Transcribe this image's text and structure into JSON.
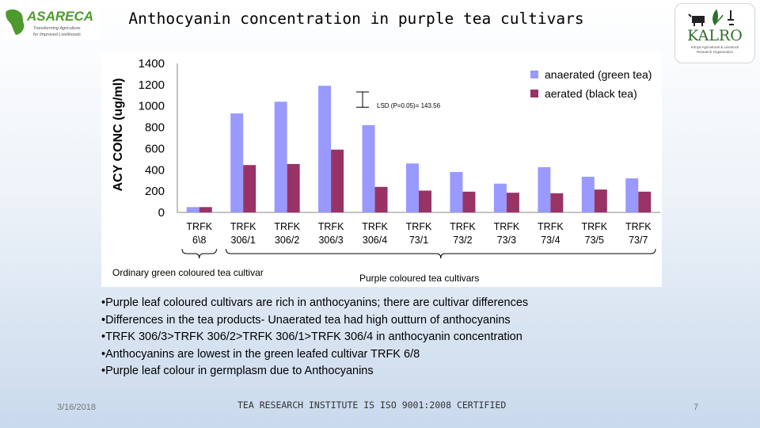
{
  "header": {
    "title": "Anthocyanin concentration in purple tea cultivars",
    "left_logo": {
      "text": "ASARECA",
      "tagline": "Transforming Agriculture for Improved Livelihoods"
    },
    "right_logo": {
      "text": "KALRO",
      "tagline": "Kenya Agricultural & Livestock Research Organization"
    }
  },
  "chart_data": {
    "type": "bar",
    "ylabel": "ACY CONC (ug/ml)",
    "xlabel": "",
    "ylim": [
      0,
      1400
    ],
    "yticks": [
      0,
      200,
      400,
      600,
      800,
      1000,
      1200,
      1400
    ],
    "grid": false,
    "legend_position": "top-right",
    "categories": [
      [
        "TRFK",
        "6\\8"
      ],
      [
        "TRFK",
        "306/1"
      ],
      [
        "TRFK",
        "306/2"
      ],
      [
        "TRFK",
        "306/3"
      ],
      [
        "TRFK",
        "306/4"
      ],
      [
        "TRFK",
        "73/1"
      ],
      [
        "TRFK",
        "73/2"
      ],
      [
        "TRFK",
        "73/3"
      ],
      [
        "TRFK",
        "73/4"
      ],
      [
        "TRFK",
        "73/5"
      ],
      [
        "TRFK",
        "73/7"
      ]
    ],
    "series": [
      {
        "name": "anaerated (green tea)",
        "color": "#9999ff",
        "values": [
          50,
          930,
          1040,
          1190,
          820,
          460,
          380,
          270,
          425,
          335,
          320
        ]
      },
      {
        "name": "aerated (black tea)",
        "color": "#993366",
        "values": [
          50,
          445,
          455,
          590,
          240,
          205,
          195,
          185,
          180,
          215,
          195
        ]
      }
    ],
    "annotation": "LSD (P=0.05)= 143.56",
    "lsd_value": 143.56,
    "group_labels": [
      {
        "label": "Ordinary green coloured tea cultivar",
        "from_category": 0,
        "to_category": 0
      },
      {
        "label": "Purple coloured tea cultivars",
        "from_category": 1,
        "to_category": 10
      }
    ]
  },
  "bullets": [
    "•Purple leaf coloured cultivars are rich in anthocyanins; there are cultivar differences",
    "•Differences in the tea products- Unaerated tea had high outturn of anthocyanins",
    "•TRFK 306/3>TRFK 306/2>TRFK 306/1>TRFK 306/4 in anthocyanin concentration",
    "•Anthocyanins are lowest in  the green leafed cultivar TRFK 6/8",
    "•Purple leaf colour in germplasm due to Anthocyanins"
  ],
  "footer": {
    "date": "3/16/2018",
    "center": "TEA RESEARCH INSTITUTE IS ISO 9001:2008 CERTIFIED",
    "page": "7"
  },
  "colors": {
    "green_tea_bar": "#9999ff",
    "black_tea_bar": "#993366",
    "asareca_green": "#4e9a2e",
    "kalro_green": "#2e6f2e"
  }
}
